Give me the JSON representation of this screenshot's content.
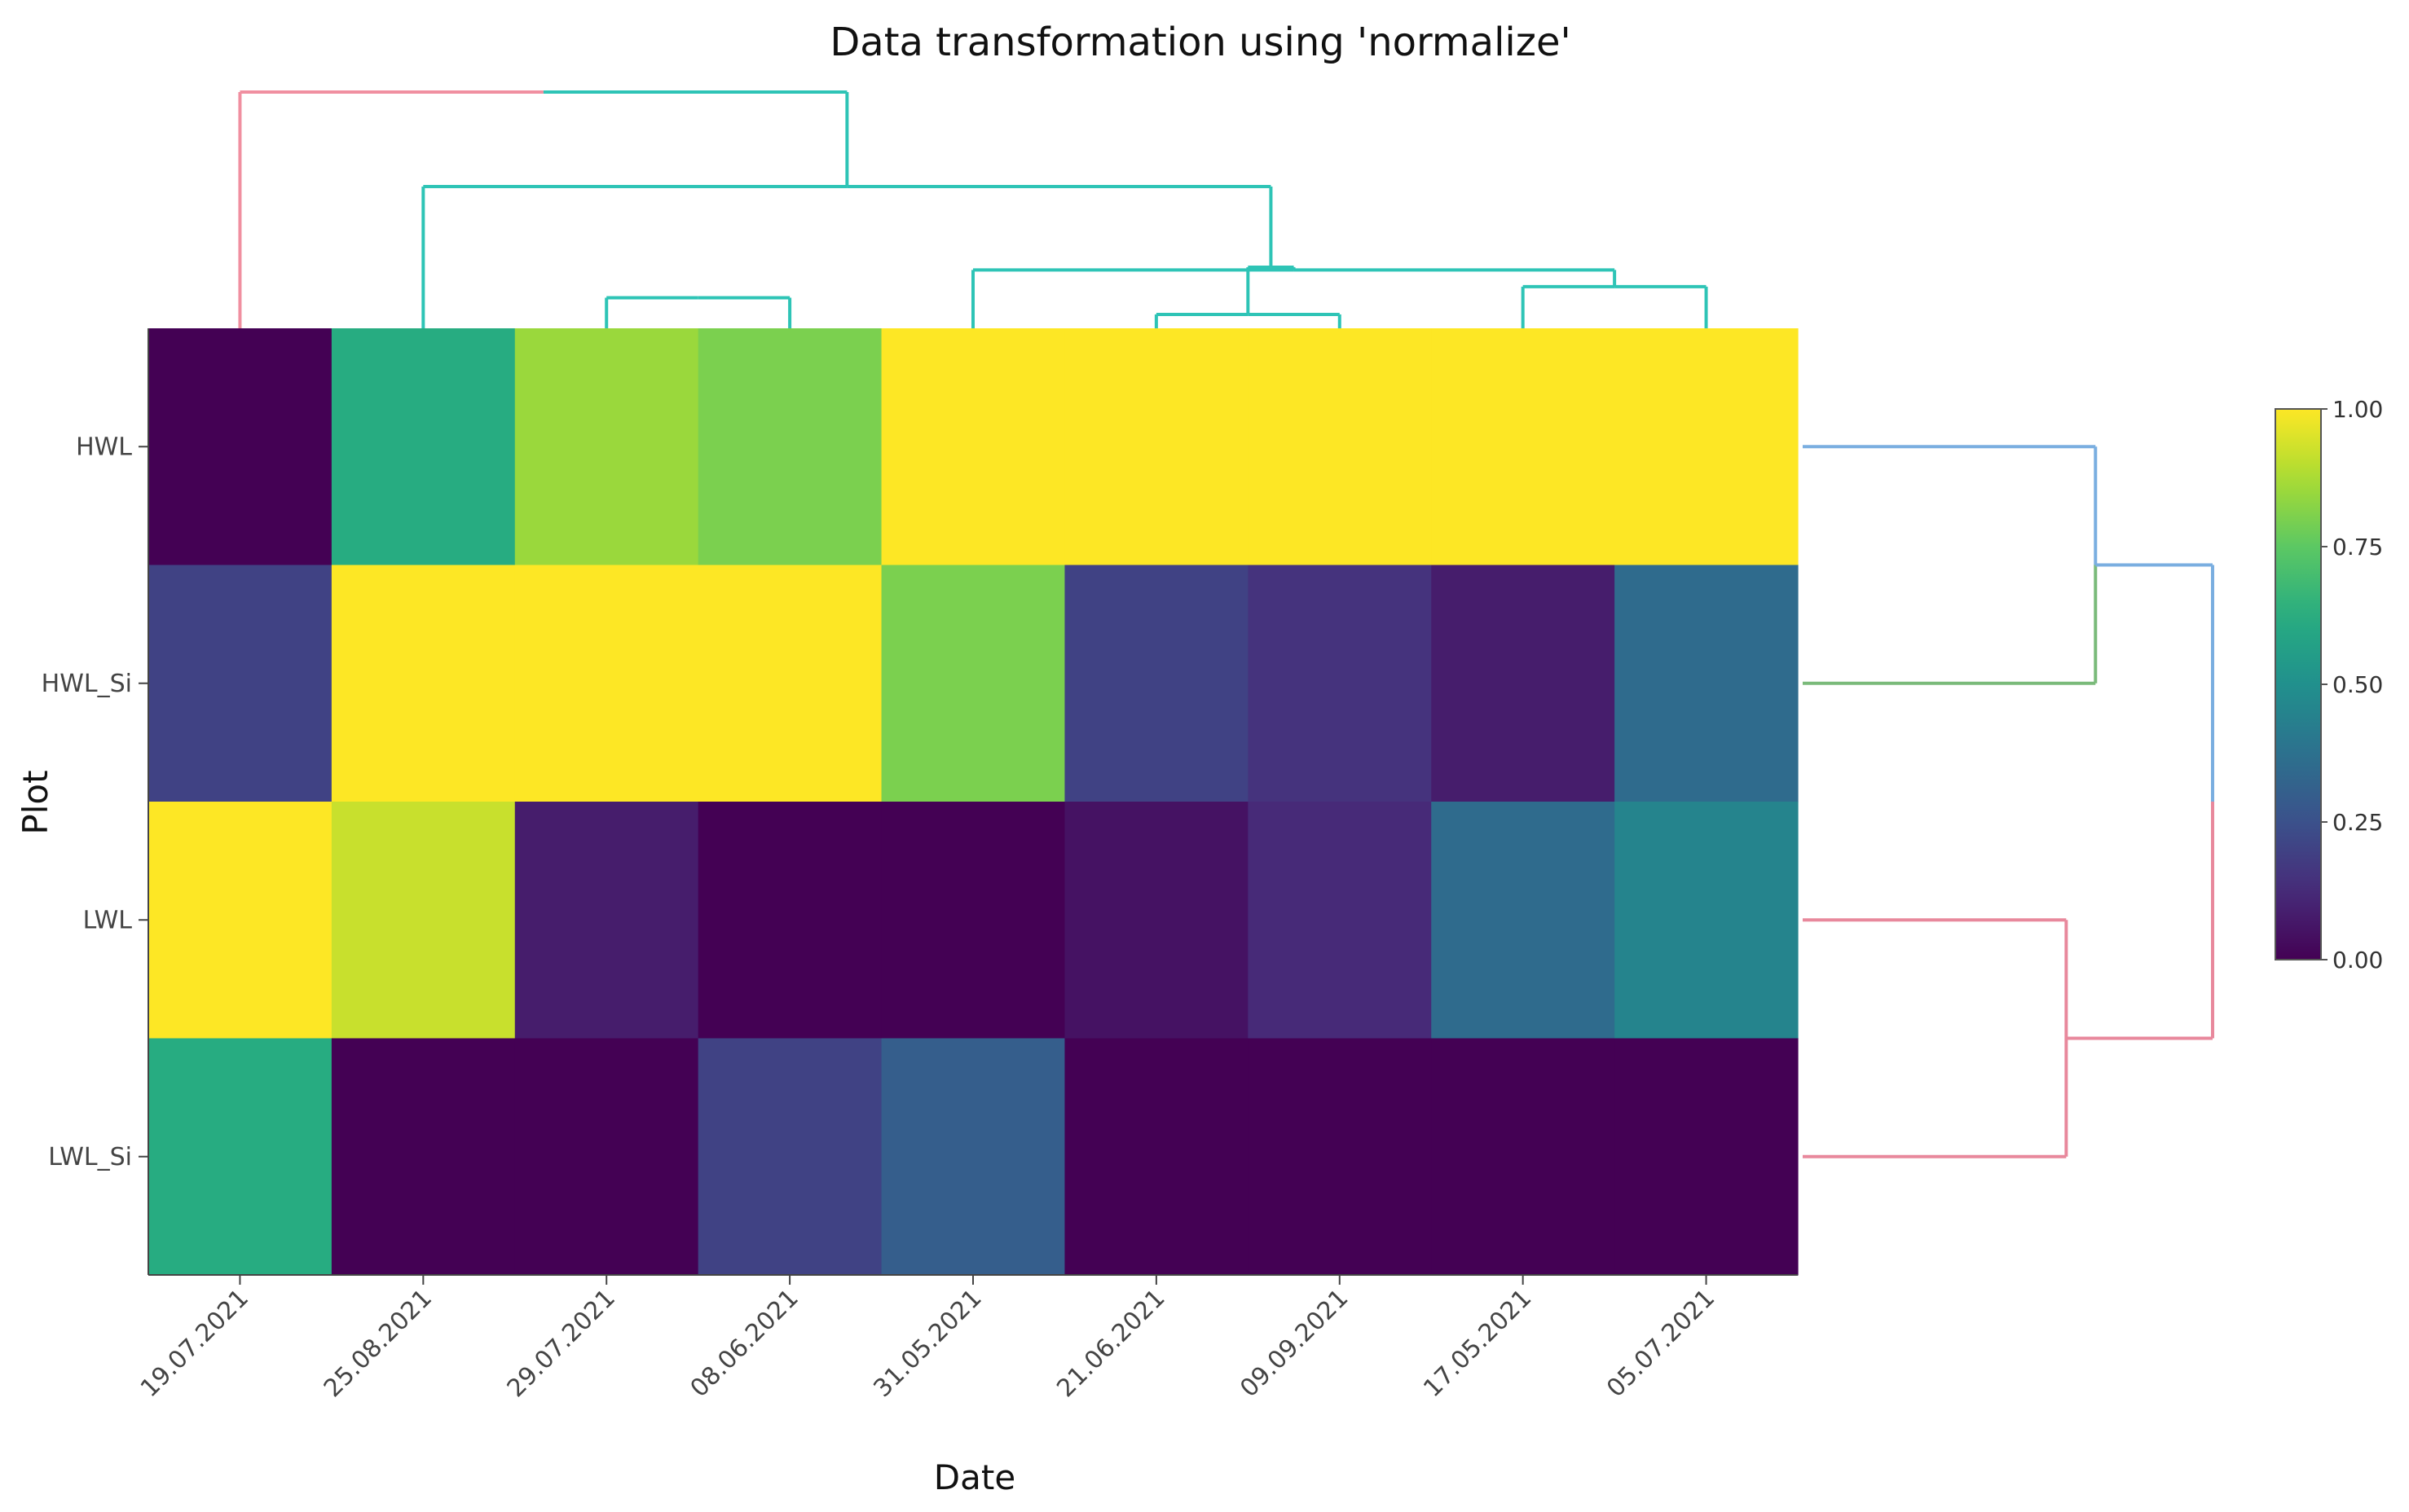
{
  "chart_data": {
    "type": "heatmap",
    "title": "Data transformation using 'normalize'",
    "xlabel": "Date",
    "ylabel": "Plot",
    "x": [
      "19.07.2021",
      "25.08.2021",
      "29.07.2021",
      "08.06.2021",
      "31.05.2021",
      "21.06.2021",
      "09.09.2021",
      "17.05.2021",
      "05.07.2021"
    ],
    "y": [
      "HWL",
      "HWL_Si",
      "LWL",
      "LWL_Si"
    ],
    "values": [
      [
        0.0,
        0.62,
        0.85,
        0.8,
        1.0,
        1.0,
        1.0,
        1.0,
        1.0
      ],
      [
        0.2,
        1.0,
        1.0,
        1.0,
        0.8,
        0.2,
        0.15,
        0.08,
        0.35
      ],
      [
        1.0,
        0.92,
        0.08,
        0.0,
        0.0,
        0.05,
        0.12,
        0.35,
        0.45
      ],
      [
        0.62,
        0.0,
        0.0,
        0.2,
        0.3,
        0.0,
        0.0,
        0.0,
        0.0
      ]
    ],
    "colorscale": "viridis",
    "zlim": [
      0,
      1
    ],
    "colorbar": {
      "ticks": [
        0,
        0.25,
        0.5,
        0.75,
        1
      ],
      "tick_labels": [
        "0.00",
        "0.25",
        "0.50",
        "0.75",
        "1.00"
      ]
    },
    "column_dendrogram": {
      "merges": [
        [
          2,
          3
        ],
        [
          7,
          8
        ],
        [
          5,
          6
        ],
        [
          10,
          4
        ],
        [
          12,
          11
        ],
        [
          1,
          13
        ],
        [
          0,
          14
        ]
      ],
      "heights": [
        0.11,
        0.15,
        0.05,
        0.21,
        0.22,
        0.51,
        0.85
      ],
      "branch_colors": [
        "#2ec4b6",
        "#2ec4b6",
        "#2ec4b6",
        "#2ec4b6",
        "#2ec4b6",
        "#2ec4b6",
        "#2ec4b6"
      ],
      "leaf_colors": [
        "#f08fa0",
        "#2ec4b6",
        "#2ec4b6",
        "#2ec4b6",
        "#2ec4b6",
        "#2ec4b6",
        "#2ec4b6",
        "#2ec4b6",
        "#2ec4b6"
      ]
    },
    "row_dendrogram": {
      "merges": [
        [
          0,
          1
        ],
        [
          2,
          3
        ],
        [
          4,
          5
        ]
      ],
      "heights": [
        0.5,
        0.45,
        0.7
      ],
      "branch_colors": [
        "#7aaee0",
        "#e8889c",
        "#000000"
      ],
      "leaf_colors": [
        "#7aaee0",
        "#7aba7a",
        "#e8889c",
        "#e8889c"
      ]
    }
  },
  "colors": {
    "tick": "#444444",
    "axis_line": "#444444",
    "colorbar_border": "#555555"
  }
}
